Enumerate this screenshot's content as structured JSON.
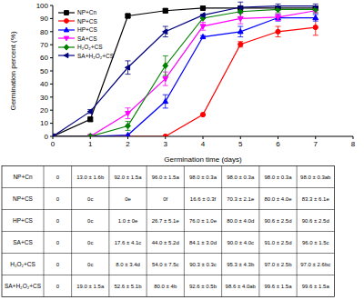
{
  "chart_data": {
    "type": "line",
    "x_label": "Germination time (days)",
    "y_label": "Germination percent (%)",
    "x": [
      0,
      1,
      2,
      3,
      4,
      5,
      6,
      7
    ],
    "xlim": [
      0,
      8
    ],
    "xticks": [
      0,
      1,
      2,
      3,
      4,
      5,
      6,
      7,
      8
    ],
    "ylim": [
      0,
      100
    ],
    "yticks": [
      0,
      10,
      20,
      30,
      40,
      50,
      60,
      70,
      80,
      90,
      100
    ],
    "grid": false,
    "legend": "upper left",
    "series": [
      {
        "name": "NP+Cn",
        "color": "#000000",
        "marker": "square",
        "values": [
          0,
          13.0,
          92.0,
          96.0,
          98.0,
          98.0,
          98.0,
          98.0
        ],
        "errors": [
          0,
          1.6,
          1.5,
          1.5,
          0.3,
          0.3,
          0.3,
          0.3
        ]
      },
      {
        "name": "NP+CS",
        "color": "#ff0000",
        "marker": "circle",
        "values": [
          0,
          0,
          0,
          0,
          16.6,
          70.3,
          80.0,
          83.3
        ],
        "errors": [
          0,
          0,
          0,
          0,
          0.3,
          2.1,
          4.0,
          6.1
        ]
      },
      {
        "name": "HP+CS",
        "color": "#0000ff",
        "marker": "triangle-up",
        "values": [
          0,
          0,
          1.0,
          26.7,
          76.0,
          80.0,
          90.6,
          90.6
        ],
        "errors": [
          0,
          0,
          0,
          5.1,
          1.0,
          4.0,
          2.5,
          2.5
        ]
      },
      {
        "name": "SA+CS",
        "color": "#ff00ff",
        "marker": "triangle-down",
        "values": [
          0,
          0,
          17.6,
          44.0,
          84.1,
          90.0,
          91.0,
          96.0
        ],
        "errors": [
          0,
          0,
          4.1,
          5.2,
          3.0,
          4.0,
          2.5,
          1.5
        ]
      },
      {
        "name": "H₂O₂+CS",
        "color": "#008000",
        "marker": "diamond",
        "values": [
          0,
          0,
          8.0,
          54.0,
          90.3,
          95.3,
          97.0,
          97.0
        ],
        "errors": [
          0,
          0,
          3.4,
          7.5,
          0.3,
          4.3,
          2.5,
          2.6
        ]
      },
      {
        "name": "SA+H₂O₂+CS",
        "color": "#000080",
        "marker": "triangle-left",
        "values": [
          0,
          19.0,
          52.6,
          80.0,
          92.6,
          98.6,
          99.6,
          99.6
        ],
        "errors": [
          0,
          1.5,
          5.1,
          4.0,
          0.5,
          4.0,
          1.5,
          1.5
        ]
      }
    ]
  },
  "table": {
    "rows": [
      {
        "label": "NP+Cn",
        "cells": [
          "0",
          "13.0 ± 1.6b",
          "92.0 ± 1.5a",
          "96.0 ± 1.5a",
          "98.0 ± 0.3a",
          "98.0 ± 0.3a",
          "98.0 ± 0.3a",
          "98.0 ± 0.3ab"
        ]
      },
      {
        "label": "NP+CS",
        "cells": [
          "0",
          "0c",
          "0e",
          "0f",
          "16.6 ± 0.3f",
          "70.3 ± 2.1e",
          "80.0 ± 4.0e",
          "83.3 ± 6.1e"
        ]
      },
      {
        "label": "HP+CS",
        "cells": [
          "0",
          "0c",
          "1.0 ± 0e",
          "26.7 ± 5.1e",
          "76.0 ± 1.0e",
          "80.0 ± 4.0d",
          "90.6 ± 2.5d",
          "90.6 ± 2.5d"
        ]
      },
      {
        "label": "SA+CS",
        "cells": [
          "0",
          "0c",
          "17.6 ± 4.1c",
          "44.0 ± 5.2d",
          "84.1 ± 3.0d",
          "90.0 ± 4.0c",
          "91.0 ± 2.5d",
          "96.0 ± 1.5c"
        ]
      },
      {
        "label": "H₂O₂+CS",
        "cells": [
          "0",
          "0c",
          "8.0 ± 3.4d",
          "54.0 ± 7.5c",
          "90.3 ± 0.3c",
          "95.3 ± 4.3b",
          "97.0 ± 2.5b",
          "97.0 ± 2.6bc"
        ]
      },
      {
        "label": "SA+H₂O₂+CS",
        "cells": [
          "0",
          "19.0 ± 1.5a",
          "52.6 ± 5.1b",
          "80.0 ± 4b",
          "92.6 ± 0.5b",
          "98.6 ± 4.0ab",
          "99.6 ± 1.5a",
          "99.6 ± 1.5a"
        ]
      }
    ]
  }
}
